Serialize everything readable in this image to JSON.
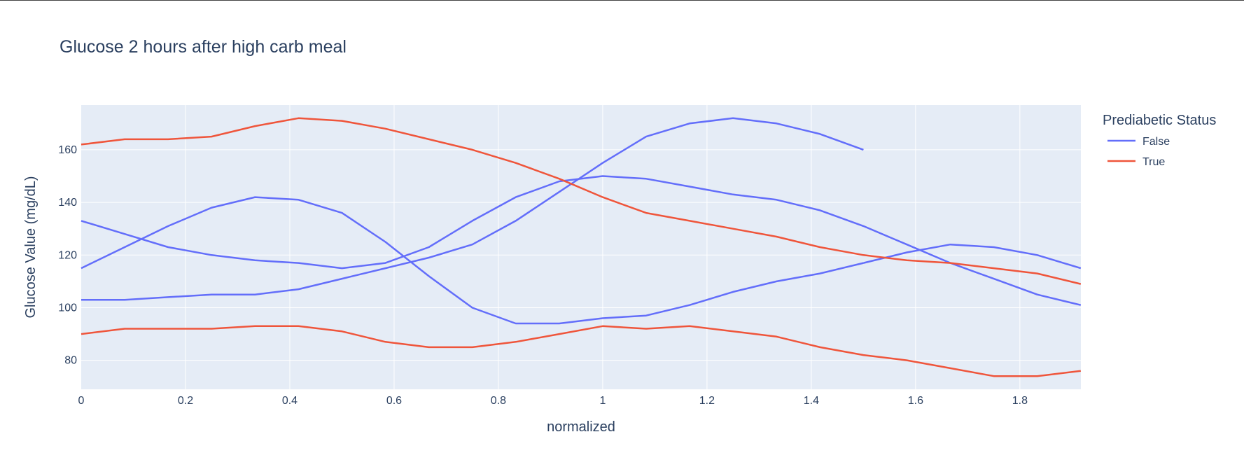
{
  "chart_data": {
    "type": "line",
    "title": "Glucose 2 hours after high carb meal",
    "xlabel": "normalized",
    "ylabel": "Glucose Value (mg/dL)",
    "xlim": [
      0,
      1.917
    ],
    "ylim": [
      69,
      177
    ],
    "xticks": [
      0,
      0.2,
      0.4,
      0.6,
      0.8,
      1,
      1.2,
      1.4,
      1.6,
      1.8
    ],
    "xtick_labels": [
      "0",
      "0.2",
      "0.4",
      "0.6",
      "0.8",
      "1",
      "1.2",
      "1.4",
      "1.6",
      "1.8"
    ],
    "yticks": [
      80,
      100,
      120,
      140,
      160
    ],
    "ytick_labels": [
      "80",
      "100",
      "120",
      "140",
      "160"
    ],
    "grid": true,
    "legend": {
      "title": "Prediabetic Status",
      "position": "right",
      "items": [
        {
          "label": "False",
          "color": "#636efa"
        },
        {
          "label": "True",
          "color": "#ef553b"
        }
      ]
    },
    "series": [
      {
        "group": "False",
        "color": "#636efa",
        "x": [
          0,
          0.0833,
          0.1667,
          0.25,
          0.3333,
          0.4167,
          0.5,
          0.5833,
          0.6667,
          0.75,
          0.8333,
          0.9167,
          1,
          1.0833,
          1.1667,
          1.25,
          1.3333,
          1.4167,
          1.5
        ],
        "y": [
          115,
          123,
          131,
          138,
          142,
          141,
          136,
          125,
          112,
          100,
          94,
          94,
          96,
          97,
          101,
          106,
          110,
          113,
          117
        ]
      },
      {
        "group": "False",
        "color": "#636efa",
        "x": [
          0,
          0.0833,
          0.1667,
          0.25,
          0.3333,
          0.4167,
          0.5,
          0.5833,
          0.6667,
          0.75,
          0.8333,
          0.9167,
          1,
          1.0833,
          1.1667,
          1.25,
          1.3333,
          1.4167,
          1.5
        ],
        "y": [
          103,
          103,
          104,
          105,
          105,
          107,
          111,
          115,
          119,
          124,
          133,
          144,
          155,
          165,
          170,
          172,
          170,
          166,
          160
        ]
      },
      {
        "group": "False",
        "color": "#636efa",
        "x": [
          0,
          0.0833,
          0.1667,
          0.25,
          0.3333,
          0.4167,
          0.5,
          0.5833,
          0.6667,
          0.75,
          0.8333,
          0.9167,
          1,
          1.0833,
          1.1667,
          1.25,
          1.3333,
          1.4167,
          1.5,
          1.5833,
          1.6667,
          1.75,
          1.8333,
          1.9167
        ],
        "y": [
          133,
          128,
          123,
          120,
          118,
          117,
          115,
          117,
          123,
          133,
          142,
          148,
          150,
          149,
          146,
          143,
          141,
          137,
          131,
          124,
          117,
          111,
          105,
          101
        ]
      },
      {
        "group": "False",
        "color": "#636efa",
        "x": [
          1.5,
          1.5833,
          1.6667,
          1.75,
          1.8333,
          1.9167
        ],
        "y": [
          117,
          121,
          124,
          123,
          120,
          115
        ]
      },
      {
        "group": "True",
        "color": "#ef553b",
        "x": [
          0,
          0.0833,
          0.1667,
          0.25,
          0.3333,
          0.4167,
          0.5,
          0.5833,
          0.6667,
          0.75,
          0.8333,
          0.9167,
          1,
          1.0833,
          1.1667,
          1.25,
          1.3333,
          1.4167,
          1.5,
          1.5833,
          1.6667,
          1.75,
          1.8333,
          1.9167
        ],
        "y": [
          162,
          164,
          164,
          165,
          169,
          172,
          171,
          168,
          164,
          160,
          155,
          149,
          142,
          136,
          133,
          130,
          127,
          123,
          120,
          118,
          117,
          115,
          113,
          109
        ]
      },
      {
        "group": "True",
        "color": "#ef553b",
        "x": [
          0,
          0.0833,
          0.1667,
          0.25,
          0.3333,
          0.4167,
          0.5,
          0.5833,
          0.6667,
          0.75,
          0.8333,
          0.9167,
          1,
          1.0833,
          1.1667,
          1.25,
          1.3333,
          1.4167,
          1.5,
          1.5833,
          1.6667,
          1.75,
          1.8333,
          1.9167
        ],
        "y": [
          90,
          92,
          92,
          92,
          93,
          93,
          91,
          87,
          85,
          85,
          87,
          90,
          93,
          92,
          93,
          91,
          89,
          85,
          82,
          80,
          77,
          74,
          74,
          76
        ]
      }
    ]
  }
}
